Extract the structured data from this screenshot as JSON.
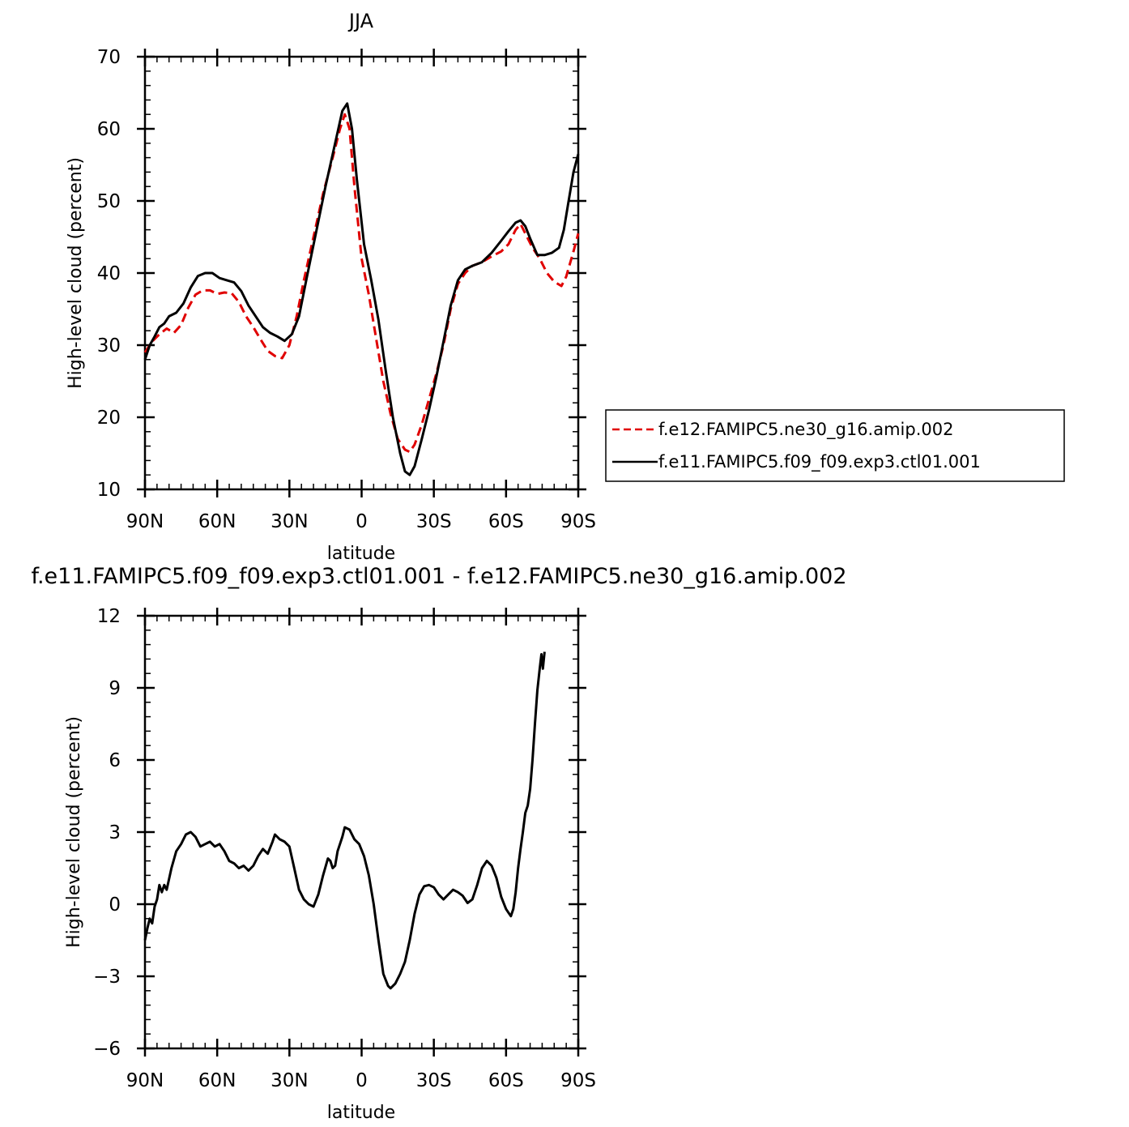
{
  "colors": {
    "exp_red": "#e00000",
    "ctl_black": "#000000",
    "background": "#ffffff"
  },
  "chart_data": [
    {
      "type": "line",
      "title": "JJA",
      "xlabel": "latitude",
      "ylabel": "High-level cloud (percent)",
      "xlim": [
        -90,
        90
      ],
      "ylim": [
        10,
        70
      ],
      "x_ticks": [
        {
          "value": -90,
          "label": "90N"
        },
        {
          "value": -60,
          "label": "60N"
        },
        {
          "value": -30,
          "label": "30N"
        },
        {
          "value": 0,
          "label": "0"
        },
        {
          "value": 30,
          "label": "30S"
        },
        {
          "value": 60,
          "label": "60S"
        },
        {
          "value": 90,
          "label": "90S"
        }
      ],
      "y_ticks": [
        10,
        20,
        30,
        40,
        50,
        60,
        70
      ],
      "legend_position": "right",
      "series": [
        {
          "name": "f.e12.FAMIPC5.ne30_g16.amip.002",
          "style": "dashed",
          "color": "#e00000",
          "points": [
            [
              -90,
              29.0
            ],
            [
              -87,
              30.5
            ],
            [
              -84,
              31.5
            ],
            [
              -81,
              32.3
            ],
            [
              -78,
              31.7
            ],
            [
              -75,
              32.8
            ],
            [
              -72,
              35.2
            ],
            [
              -69,
              37.0
            ],
            [
              -66,
              37.6
            ],
            [
              -63,
              37.6
            ],
            [
              -60,
              37.1
            ],
            [
              -57,
              37.3
            ],
            [
              -54,
              37.2
            ],
            [
              -51,
              36.0
            ],
            [
              -48,
              34.0
            ],
            [
              -45,
              32.5
            ],
            [
              -42,
              30.8
            ],
            [
              -39,
              29.2
            ],
            [
              -36,
              28.5
            ],
            [
              -33,
              28.2
            ],
            [
              -30,
              30.0
            ],
            [
              -27,
              34.0
            ],
            [
              -24,
              39.0
            ],
            [
              -20,
              45.0
            ],
            [
              -16,
              51.0
            ],
            [
              -12,
              56.0
            ],
            [
              -9,
              60.0
            ],
            [
              -7,
              62.0
            ],
            [
              -5,
              60.0
            ],
            [
              -3,
              52.0
            ],
            [
              0,
              42.0
            ],
            [
              3,
              37.0
            ],
            [
              6,
              31.0
            ],
            [
              9,
              25.0
            ],
            [
              12,
              20.5
            ],
            [
              15,
              17.0
            ],
            [
              18,
              15.5
            ],
            [
              20,
              15.2
            ],
            [
              22,
              16.2
            ],
            [
              25,
              19.0
            ],
            [
              28,
              22.5
            ],
            [
              31,
              26.0
            ],
            [
              34,
              30.0
            ],
            [
              37,
              35.0
            ],
            [
              40,
              38.5
            ],
            [
              43,
              40.0
            ],
            [
              46,
              41.0
            ],
            [
              50,
              41.5
            ],
            [
              54,
              42.3
            ],
            [
              58,
              43.0
            ],
            [
              61,
              44.0
            ],
            [
              64,
              46.0
            ],
            [
              66,
              46.8
            ],
            [
              68,
              45.5
            ],
            [
              71,
              43.5
            ],
            [
              74,
              42.0
            ],
            [
              77,
              40.0
            ],
            [
              80,
              38.8
            ],
            [
              83,
              38.2
            ],
            [
              85,
              39.5
            ],
            [
              88,
              43.0
            ],
            [
              90,
              45.5
            ]
          ]
        },
        {
          "name": "f.e11.FAMIPC5.f09_f09.exp3.ctl01.001",
          "style": "solid",
          "color": "#000000",
          "points": [
            [
              -90,
              28.0
            ],
            [
              -88,
              30.0
            ],
            [
              -86,
              31.2
            ],
            [
              -84,
              32.5
            ],
            [
              -82,
              33.0
            ],
            [
              -80,
              34.0
            ],
            [
              -77,
              34.5
            ],
            [
              -74,
              35.8
            ],
            [
              -71,
              38.0
            ],
            [
              -68,
              39.6
            ],
            [
              -65,
              40.0
            ],
            [
              -62,
              40.0
            ],
            [
              -59,
              39.3
            ],
            [
              -56,
              39.0
            ],
            [
              -53,
              38.7
            ],
            [
              -50,
              37.5
            ],
            [
              -47,
              35.5
            ],
            [
              -44,
              34.0
            ],
            [
              -41,
              32.5
            ],
            [
              -38,
              31.7
            ],
            [
              -35,
              31.2
            ],
            [
              -32,
              30.6
            ],
            [
              -29,
              31.5
            ],
            [
              -26,
              34.0
            ],
            [
              -23,
              39.0
            ],
            [
              -19,
              45.5
            ],
            [
              -15,
              52.0
            ],
            [
              -11,
              58.0
            ],
            [
              -8,
              62.5
            ],
            [
              -6,
              63.5
            ],
            [
              -4,
              60.0
            ],
            [
              -2,
              53.0
            ],
            [
              1,
              44.0
            ],
            [
              4,
              39.0
            ],
            [
              7,
              33.5
            ],
            [
              10,
              26.5
            ],
            [
              13,
              20.0
            ],
            [
              16,
              15.0
            ],
            [
              18,
              12.5
            ],
            [
              20,
              12.0
            ],
            [
              22,
              13.2
            ],
            [
              25,
              17.0
            ],
            [
              28,
              21.0
            ],
            [
              31,
              25.5
            ],
            [
              34,
              30.5
            ],
            [
              37,
              35.5
            ],
            [
              40,
              39.0
            ],
            [
              43,
              40.5
            ],
            [
              46,
              41.0
            ],
            [
              50,
              41.5
            ],
            [
              54,
              42.8
            ],
            [
              58,
              44.5
            ],
            [
              61,
              45.8
            ],
            [
              64,
              47.0
            ],
            [
              66,
              47.3
            ],
            [
              68,
              46.5
            ],
            [
              70,
              44.8
            ],
            [
              73,
              42.5
            ],
            [
              76,
              42.5
            ],
            [
              79,
              42.8
            ],
            [
              82,
              43.5
            ],
            [
              84,
              46.0
            ],
            [
              86,
              50.0
            ],
            [
              88,
              54.0
            ],
            [
              90,
              56.5
            ]
          ]
        }
      ]
    },
    {
      "type": "line",
      "title": "f.e11.FAMIPC5.f09_f09.exp3.ctl01.001  -  f.e12.FAMIPC5.ne30_g16.amip.002",
      "xlabel": "latitude",
      "ylabel": "High-level cloud (percent)",
      "xlim": [
        -90,
        90
      ],
      "ylim": [
        -6,
        12
      ],
      "x_ticks": [
        {
          "value": -90,
          "label": "90N"
        },
        {
          "value": -60,
          "label": "60N"
        },
        {
          "value": -30,
          "label": "30N"
        },
        {
          "value": 0,
          "label": "0"
        },
        {
          "value": 30,
          "label": "30S"
        },
        {
          "value": 60,
          "label": "60S"
        },
        {
          "value": 90,
          "label": "90S"
        }
      ],
      "y_ticks": [
        -6,
        -3,
        0,
        3,
        6,
        9,
        12
      ],
      "series": [
        {
          "style": "solid",
          "color": "#000000",
          "points": [
            [
              -90,
              -1.5
            ],
            [
              -89,
              -1.0
            ],
            [
              -88,
              -0.6
            ],
            [
              -87,
              -0.8
            ],
            [
              -86,
              -0.1
            ],
            [
              -85,
              0.2
            ],
            [
              -84,
              0.8
            ],
            [
              -83,
              0.5
            ],
            [
              -82,
              0.8
            ],
            [
              -81,
              0.6
            ],
            [
              -79,
              1.5
            ],
            [
              -77,
              2.2
            ],
            [
              -75,
              2.5
            ],
            [
              -73,
              2.9
            ],
            [
              -71,
              3.0
            ],
            [
              -69,
              2.8
            ],
            [
              -67,
              2.4
            ],
            [
              -65,
              2.5
            ],
            [
              -63,
              2.6
            ],
            [
              -61,
              2.4
            ],
            [
              -59,
              2.5
            ],
            [
              -57,
              2.2
            ],
            [
              -55,
              1.8
            ],
            [
              -53,
              1.7
            ],
            [
              -51,
              1.5
            ],
            [
              -49,
              1.6
            ],
            [
              -47,
              1.4
            ],
            [
              -45,
              1.6
            ],
            [
              -43,
              2.0
            ],
            [
              -41,
              2.3
            ],
            [
              -39,
              2.1
            ],
            [
              -37,
              2.6
            ],
            [
              -36,
              2.9
            ],
            [
              -34,
              2.7
            ],
            [
              -32,
              2.6
            ],
            [
              -30,
              2.4
            ],
            [
              -28,
              1.5
            ],
            [
              -26,
              0.6
            ],
            [
              -24,
              0.2
            ],
            [
              -22,
              0.0
            ],
            [
              -20,
              -0.1
            ],
            [
              -18,
              0.4
            ],
            [
              -16,
              1.2
            ],
            [
              -14,
              1.9
            ],
            [
              -13,
              1.8
            ],
            [
              -12,
              1.5
            ],
            [
              -11,
              1.6
            ],
            [
              -10,
              2.2
            ],
            [
              -8,
              2.8
            ],
            [
              -7,
              3.2
            ],
            [
              -5,
              3.1
            ],
            [
              -3,
              2.7
            ],
            [
              -1,
              2.5
            ],
            [
              1,
              2.0
            ],
            [
              3,
              1.2
            ],
            [
              5,
              0.0
            ],
            [
              7,
              -1.5
            ],
            [
              9,
              -2.9
            ],
            [
              11,
              -3.4
            ],
            [
              12,
              -3.5
            ],
            [
              14,
              -3.3
            ],
            [
              16,
              -2.9
            ],
            [
              18,
              -2.4
            ],
            [
              20,
              -1.5
            ],
            [
              22,
              -0.4
            ],
            [
              24,
              0.4
            ],
            [
              26,
              0.75
            ],
            [
              28,
              0.8
            ],
            [
              30,
              0.7
            ],
            [
              32,
              0.4
            ],
            [
              34,
              0.2
            ],
            [
              36,
              0.4
            ],
            [
              38,
              0.6
            ],
            [
              40,
              0.5
            ],
            [
              42,
              0.35
            ],
            [
              44,
              0.05
            ],
            [
              46,
              0.2
            ],
            [
              48,
              0.8
            ],
            [
              50,
              1.5
            ],
            [
              52,
              1.8
            ],
            [
              54,
              1.6
            ],
            [
              56,
              1.1
            ],
            [
              58,
              0.3
            ],
            [
              60,
              -0.2
            ],
            [
              61,
              -0.35
            ],
            [
              62,
              -0.5
            ],
            [
              63,
              -0.2
            ],
            [
              64,
              0.5
            ],
            [
              65,
              1.5
            ],
            [
              66,
              2.3
            ],
            [
              67,
              3.0
            ],
            [
              68,
              3.8
            ],
            [
              69,
              4.1
            ],
            [
              70,
              4.8
            ],
            [
              71,
              6.0
            ],
            [
              72,
              7.5
            ],
            [
              73,
              8.9
            ],
            [
              74,
              9.8
            ],
            [
              74.7,
              10.4
            ],
            [
              75.3,
              9.8
            ],
            [
              76,
              10.5
            ]
          ]
        }
      ]
    }
  ]
}
